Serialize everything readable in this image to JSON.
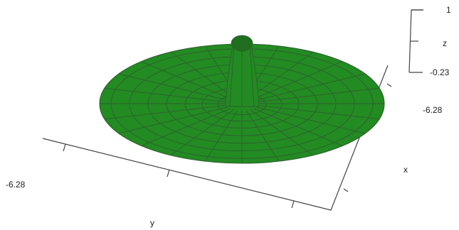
{
  "chart_data": {
    "type": "surface",
    "title": "",
    "surface_color": "#228b22",
    "axes": {
      "x": {
        "label": "x",
        "tick_labels": [
          "-6.28"
        ]
      },
      "y": {
        "label": "y",
        "tick_labels": [
          "-6.28"
        ]
      },
      "z": {
        "label": "z",
        "tick_labels": [
          "1",
          "-0.23"
        ]
      }
    }
  }
}
